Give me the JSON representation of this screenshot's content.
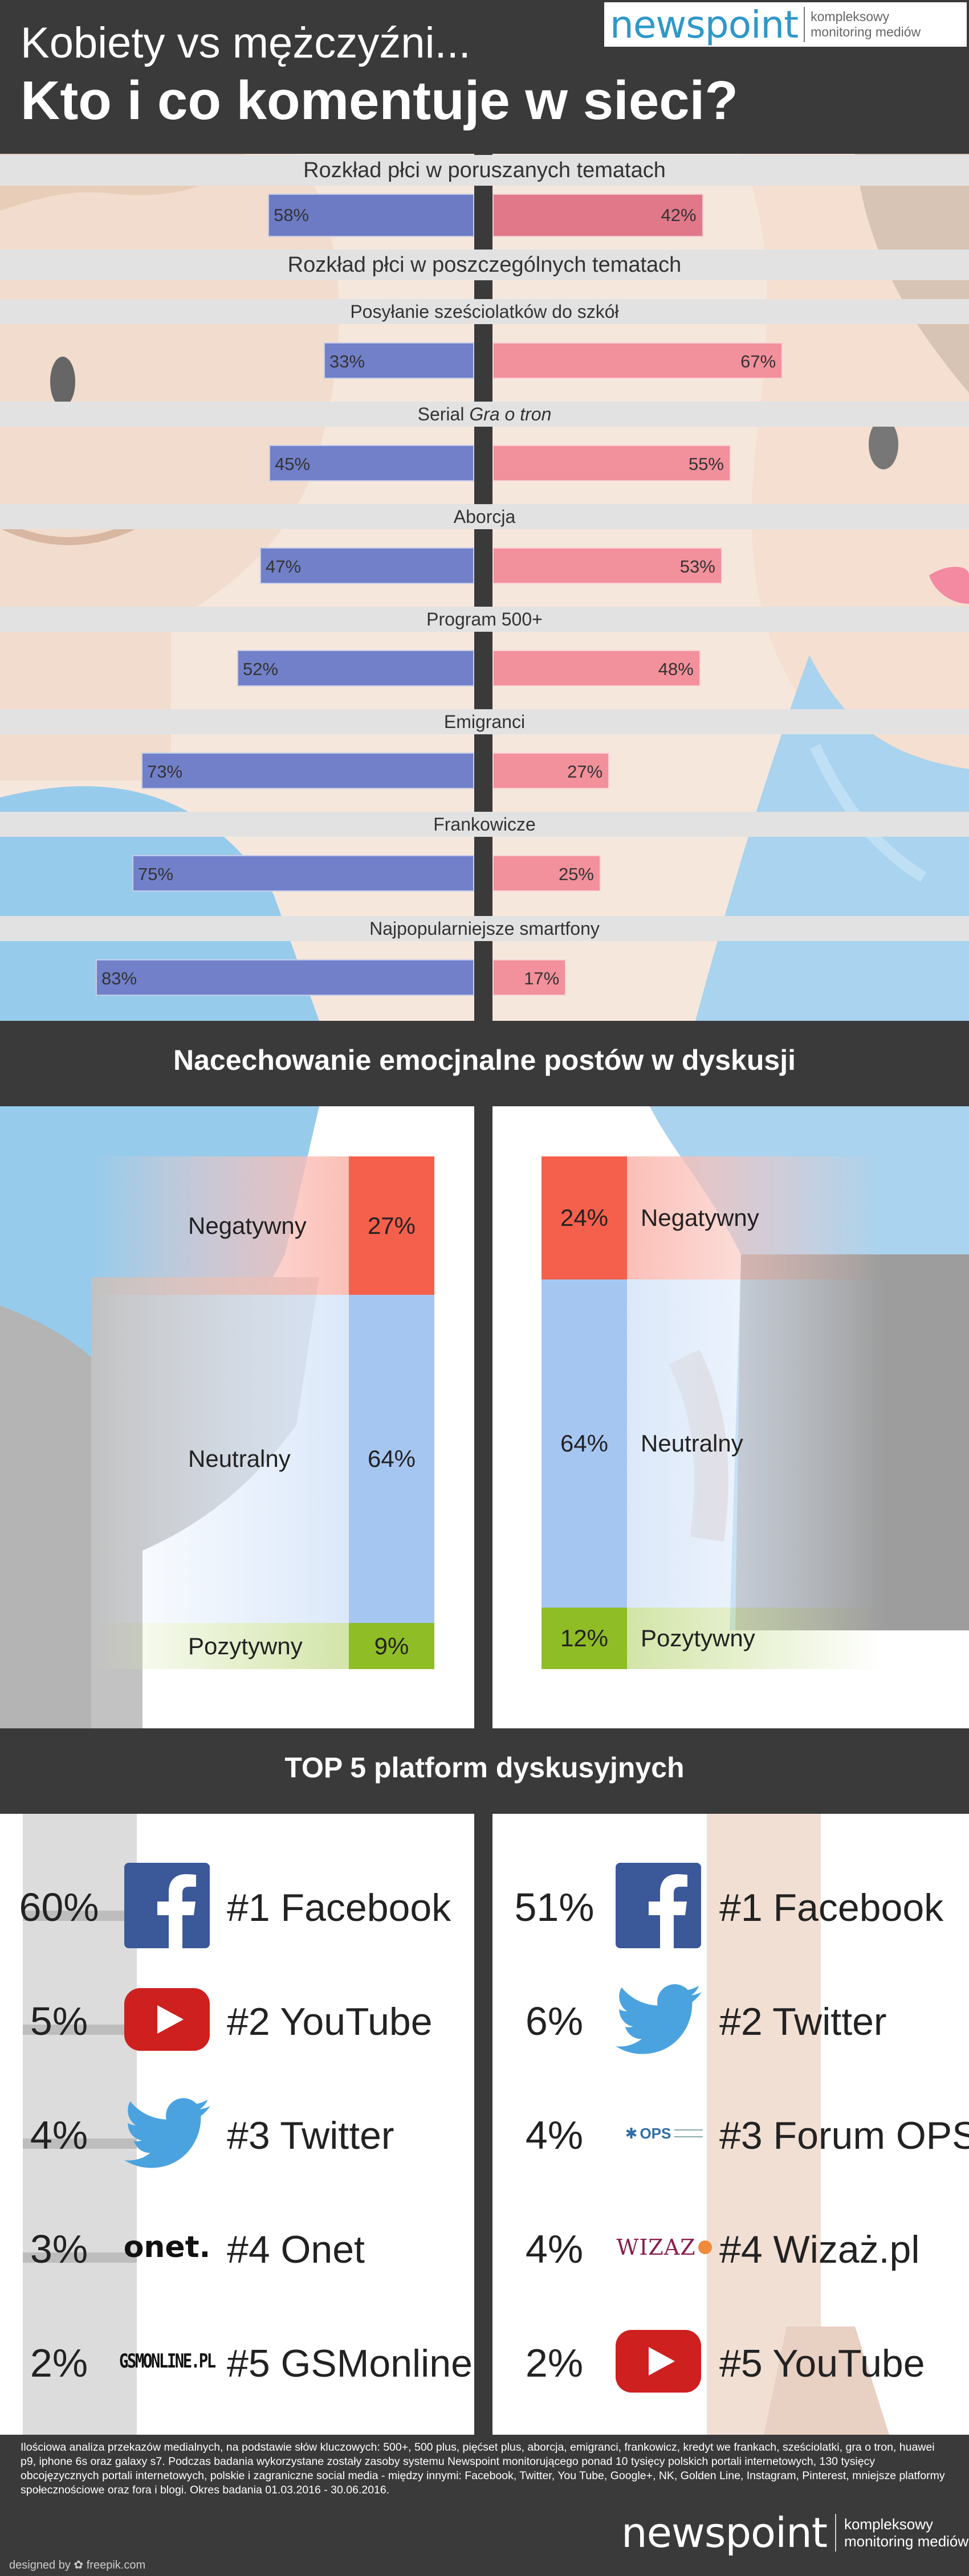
{
  "header": {
    "title_line1": "Kobiety vs mężczyźni...",
    "title_line2": "Kto i co komentuje w sieci?",
    "logo_text": "newspoint",
    "logo_tagline_1": "kompleksowy",
    "logo_tagline_2": "monitoring mediów"
  },
  "section1": {
    "band_overall": "Rozkład płci w poruszanych tematach",
    "band_topics": "Rozkład płci w poszczególnych tematach",
    "overall": {
      "male_label": "58%",
      "female_label": "42%"
    },
    "topics": [
      {
        "label": "Posyłanie sześciolatków do szkół",
        "label_italic": "",
        "male_label": "33%",
        "female_label": "67%"
      },
      {
        "label": "Serial ",
        "label_italic": "Gra o tron",
        "male_label": "45%",
        "female_label": "55%"
      },
      {
        "label": "Aborcja",
        "label_italic": "",
        "male_label": "47%",
        "female_label": "53%"
      },
      {
        "label": "Program 500+",
        "label_italic": "",
        "male_label": "52%",
        "female_label": "48%"
      },
      {
        "label": "Emigranci",
        "label_italic": "",
        "male_label": "73%",
        "female_label": "27%"
      },
      {
        "label": "Frankowicze",
        "label_italic": "",
        "male_label": "75%",
        "female_label": "25%"
      },
      {
        "label": "Najpopularniejsze smartfony",
        "label_italic": "",
        "male_label": "83%",
        "female_label": "17%"
      }
    ]
  },
  "chart_data": [
    {
      "type": "bar",
      "title": "Rozkład płci w poruszanych tematach",
      "categories": [
        "Rozkład płci w poruszanych tematach"
      ],
      "series": [
        {
          "values": [
            58
          ]
        },
        {
          "values": [
            42
          ]
        }
      ],
      "ylim": [
        0,
        100
      ]
    },
    {
      "type": "bar",
      "title": "Rozkład płci w poszczególnych tematach",
      "categories": [
        "Posyłanie sześciolatków do szkół",
        "Serial Gra o tron",
        "Aborcja",
        "Program 500+",
        "Emigranci",
        "Frankowicze",
        "Najpopularniejsze smartfony"
      ],
      "series": [
        {
          "values": [
            33,
            45,
            47,
            52,
            73,
            75,
            83
          ]
        },
        {
          "values": [
            67,
            55,
            53,
            48,
            27,
            25,
            17
          ]
        }
      ],
      "ylim": [
        0,
        100
      ]
    },
    {
      "type": "bar",
      "title": "Nacechowanie emocjnalne postów w dyskusji",
      "categories": [
        "Negatywny",
        "Neutralny",
        "Pozytywny"
      ],
      "series": [
        {
          "values": [
            27,
            64,
            9
          ]
        },
        {
          "values": [
            24,
            64,
            12
          ]
        }
      ]
    },
    {
      "type": "table",
      "title": "TOP 5 platform dyskusyjnych",
      "series": [
        {
          "categories": [
            "Facebook",
            "YouTube",
            "Twitter",
            "Onet",
            "GSMonline"
          ],
          "values": [
            60,
            5,
            4,
            3,
            2
          ]
        },
        {
          "categories": [
            "Facebook",
            "Twitter",
            "Forum OPS",
            "Wizaż.pl",
            "YouTube"
          ],
          "values": [
            51,
            6,
            4,
            4,
            2
          ]
        }
      ]
    }
  ],
  "section2": {
    "title": "Nacechowanie emocjnalne postów w dyskusji",
    "male": [
      {
        "label": "Negatywny",
        "value_label": "27%",
        "value": 27,
        "color": "#f4604c"
      },
      {
        "label": "Neutralny",
        "value_label": "64%",
        "value": 64,
        "color": "#a6c6f2"
      },
      {
        "label": "Pozytywny",
        "value_label": "9%",
        "value": 9,
        "color": "#8fbd25"
      }
    ],
    "female": [
      {
        "label": "Negatywny",
        "value_label": "24%",
        "value": 24,
        "color": "#f4604c"
      },
      {
        "label": "Neutralny",
        "value_label": "64%",
        "value": 64,
        "color": "#a6c6f2"
      },
      {
        "label": "Pozytywny",
        "value_label": "12%",
        "value": 12,
        "color": "#8fbd25"
      }
    ]
  },
  "section3": {
    "title": "TOP 5 platform dyskusyjnych",
    "male": [
      {
        "pct": "60%",
        "rank_name": "#1 Facebook",
        "icon": "facebook-icon"
      },
      {
        "pct": "5%",
        "rank_name": "#2 YouTube",
        "icon": "youtube-icon"
      },
      {
        "pct": "4%",
        "rank_name": "#3 Twitter",
        "icon": "twitter-icon"
      },
      {
        "pct": "3%",
        "rank_name": "#4 Onet",
        "icon": "onet-logo"
      },
      {
        "pct": "2%",
        "rank_name": "#5 GSMonline",
        "icon": "gsmonline-logo"
      }
    ],
    "female": [
      {
        "pct": "51%",
        "rank_name": "#1 Facebook",
        "icon": "facebook-icon"
      },
      {
        "pct": "6%",
        "rank_name": "#2 Twitter",
        "icon": "twitter-icon"
      },
      {
        "pct": "4%",
        "rank_name": "#3 Forum OPS",
        "icon": "ops-logo"
      },
      {
        "pct": "4%",
        "rank_name": "#4 Wizaż.pl",
        "icon": "wizaz-logo"
      },
      {
        "pct": "2%",
        "rank_name": "#5 YouTube",
        "icon": "youtube-icon"
      }
    ],
    "logo_texts": {
      "onet": "onet.",
      "gsmonline": "GSMONLINE.PL",
      "ops": "OPS",
      "wizaz": "WIZAZ"
    }
  },
  "footer": {
    "note": "Ilościowa analiza przekazów medialnych, na podstawie słów kluczowych: 500+, 500 plus, pięćset plus, aborcja, emigranci, frankowicz, kredyt we frankach, sześciolatki, gra o tron, huawei p9, iphone 6s oraz galaxy s7. Podczas badania wykorzystane zostały zasoby systemu Newspoint monitorującego ponad 10 tysięcy polskich portali internetowych, 130 tysięcy obcojęzycznych portali internetowych, polskie i zagraniczne social media - między innymi: Facebook, Twitter, You Tube, Google+, NK, Golden Line, Instagram, Pinterest, mniejsze platformy społecznościowe oraz fora i blogi. Okres badania 01.03.2016 - 30.06.2016.",
    "logo_text": "newspoint",
    "logo_tagline_1": "kompleksowy",
    "logo_tagline_2": "monitoring mediów",
    "designed_by": "designed by ✿ freepik.com"
  },
  "colors": {
    "male_bar": "#7180c9",
    "female_bar": "#f2909b",
    "dark": "#3a3a3a",
    "band": "#e2e2e2"
  }
}
